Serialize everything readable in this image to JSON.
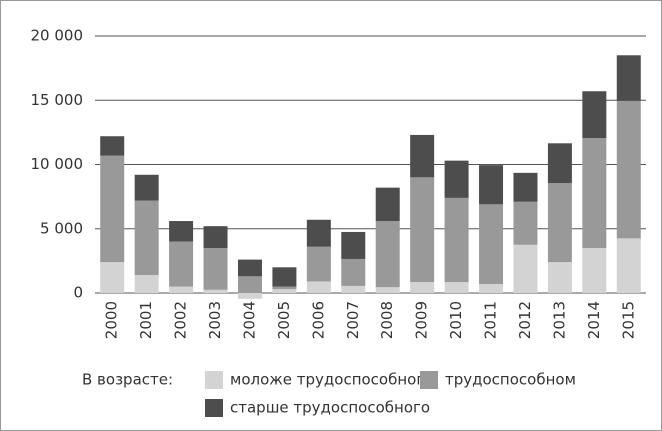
{
  "chart_data": {
    "type": "stacked_bar",
    "categories": [
      "2000",
      "2001",
      "2002",
      "2003",
      "2004",
      "2005",
      "2006",
      "2007",
      "2008",
      "2009",
      "2010",
      "2011",
      "2012",
      "2013",
      "2014",
      "2015"
    ],
    "series": [
      {
        "name": "моложе трудоспособного",
        "color": "#d3d3d3",
        "values": [
          2400,
          1400,
          500,
          250,
          -450,
          300,
          900,
          550,
          450,
          850,
          850,
          700,
          3750,
          2400,
          3500,
          4250
        ]
      },
      {
        "name": "трудоспособном",
        "color": "#999999",
        "values": [
          8300,
          5800,
          3500,
          3250,
          1300,
          200,
          2700,
          2100,
          5150,
          8150,
          6550,
          6200,
          3350,
          6150,
          8550,
          10700
        ]
      },
      {
        "name": "старше трудоспособного",
        "color": "#4d4d4d",
        "values": [
          1500,
          2000,
          1600,
          1700,
          1300,
          1500,
          2100,
          2100,
          2600,
          3300,
          2900,
          3050,
          2250,
          3100,
          3650,
          3550
        ]
      }
    ],
    "legend_title": "В возрасте:",
    "ylim": [
      0,
      20000
    ],
    "yticks": [
      0,
      {
        "value": 5000,
        "label": "5 000"
      },
      {
        "value": 10000,
        "label": "10 000"
      },
      {
        "value": 15000,
        "label": "15 000"
      },
      {
        "value": 20000,
        "label": "20 000"
      }
    ],
    "grid": true
  }
}
